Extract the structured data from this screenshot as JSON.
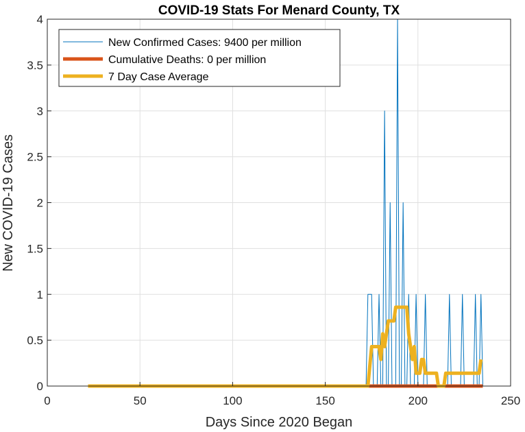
{
  "chart_data": {
    "type": "line",
    "title": "COVID-19 Stats For Menard County, TX",
    "xlabel": "Days Since 2020 Began",
    "ylabel": "New COVID-19 Cases",
    "xlim": [
      0,
      250
    ],
    "ylim": [
      0,
      4
    ],
    "xticks": [
      "0",
      "50",
      "100",
      "150",
      "200",
      "250"
    ],
    "yticks": [
      "0",
      "0.5",
      "1",
      "1.5",
      "2",
      "2.5",
      "3",
      "3.5",
      "4"
    ],
    "grid": true,
    "legend_position": "top-left",
    "series": [
      {
        "name": "New Confirmed Cases: 9400 per million",
        "color": "#0072BD",
        "points": [
          [
            22,
            0
          ],
          [
            172,
            0
          ],
          [
            173,
            1
          ],
          [
            175,
            1
          ],
          [
            176,
            0
          ],
          [
            178,
            0
          ],
          [
            179,
            1
          ],
          [
            180,
            0
          ],
          [
            181,
            0
          ],
          [
            182,
            3
          ],
          [
            183,
            0
          ],
          [
            184,
            0
          ],
          [
            185,
            2
          ],
          [
            186,
            0
          ],
          [
            187,
            0
          ],
          [
            188,
            0
          ],
          [
            189,
            4
          ],
          [
            190,
            0
          ],
          [
            191,
            0
          ],
          [
            192,
            2
          ],
          [
            193,
            0
          ],
          [
            194,
            0
          ],
          [
            195,
            1
          ],
          [
            196,
            0
          ],
          [
            197,
            0
          ],
          [
            198,
            0
          ],
          [
            199,
            1
          ],
          [
            200,
            0
          ],
          [
            201,
            0
          ],
          [
            202,
            0
          ],
          [
            203,
            0
          ],
          [
            204,
            1
          ],
          [
            205,
            0
          ],
          [
            216,
            0
          ],
          [
            217,
            1
          ],
          [
            218,
            0
          ],
          [
            223,
            0
          ],
          [
            224,
            1
          ],
          [
            225,
            0
          ],
          [
            230,
            0
          ],
          [
            231,
            1
          ],
          [
            232,
            0
          ],
          [
            233,
            0
          ],
          [
            234,
            1
          ],
          [
            235,
            0
          ]
        ]
      },
      {
        "name": "Cumulative Deaths: 0 per million",
        "color": "#D95319",
        "points": [
          [
            22,
            0
          ],
          [
            235,
            0
          ]
        ]
      },
      {
        "name": "7 Day Case Average",
        "color": "#EDB120",
        "points": [
          [
            22,
            0
          ],
          [
            173,
            0
          ],
          [
            175,
            0.43
          ],
          [
            179,
            0.43
          ],
          [
            180,
            0.29
          ],
          [
            181,
            0.57
          ],
          [
            182,
            0.43
          ],
          [
            183,
            0.57
          ],
          [
            184,
            0.71
          ],
          [
            187,
            0.71
          ],
          [
            188,
            0.86
          ],
          [
            194,
            0.86
          ],
          [
            195,
            0.57
          ],
          [
            196,
            0.43
          ],
          [
            197,
            0.29
          ],
          [
            198,
            0.43
          ],
          [
            199,
            0.14
          ],
          [
            201,
            0.14
          ],
          [
            202,
            0.29
          ],
          [
            203,
            0.29
          ],
          [
            204,
            0.14
          ],
          [
            210,
            0.14
          ],
          [
            211,
            0
          ],
          [
            214,
            0
          ],
          [
            215,
            0.14
          ],
          [
            233,
            0.14
          ],
          [
            234,
            0.29
          ]
        ]
      }
    ]
  }
}
